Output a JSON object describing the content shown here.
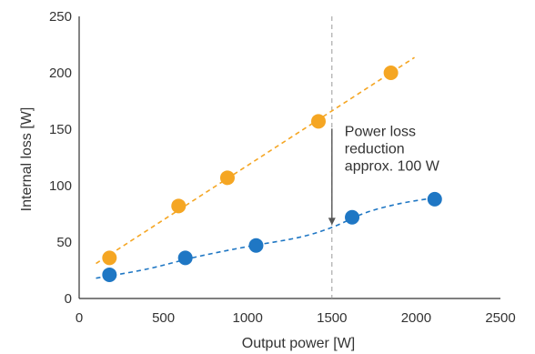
{
  "chart_data": {
    "type": "scatter",
    "xlabel": "Output power [W]",
    "ylabel": "Internal loss [W]",
    "xlim": [
      0,
      2500
    ],
    "ylim": [
      0,
      250
    ],
    "xticks": [
      0,
      500,
      1000,
      1500,
      2000,
      2500
    ],
    "yticks": [
      0,
      50,
      100,
      150,
      200,
      250
    ],
    "grid": false,
    "series": [
      {
        "color": "#F5A623",
        "points": [
          {
            "x": 180,
            "y": 36
          },
          {
            "x": 590,
            "y": 82
          },
          {
            "x": 880,
            "y": 107
          },
          {
            "x": 1420,
            "y": 157
          },
          {
            "x": 1850,
            "y": 200
          }
        ],
        "trend": "linear",
        "trend_range": [
          100,
          1990
        ]
      },
      {
        "color": "#1F77C4",
        "points": [
          {
            "x": 180,
            "y": 21
          },
          {
            "x": 630,
            "y": 36
          },
          {
            "x": 1050,
            "y": 47
          },
          {
            "x": 1620,
            "y": 72
          },
          {
            "x": 2110,
            "y": 88
          }
        ],
        "trend": "smooth",
        "trend_curve": [
          {
            "x": 100,
            "y": 18
          },
          {
            "x": 400,
            "y": 26
          },
          {
            "x": 700,
            "y": 37
          },
          {
            "x": 1000,
            "y": 46
          },
          {
            "x": 1300,
            "y": 54
          },
          {
            "x": 1500,
            "y": 63
          },
          {
            "x": 1700,
            "y": 76
          },
          {
            "x": 1900,
            "y": 84
          },
          {
            "x": 2100,
            "y": 89
          }
        ]
      }
    ],
    "reference_line": {
      "x": 1500,
      "style": "dashed",
      "color": "#999999"
    },
    "annotation": {
      "lines": [
        "Power loss",
        "reduction",
        "approx. 100 W"
      ],
      "arrow_from": {
        "x": 1500,
        "y": 157
      },
      "arrow_to": {
        "x": 1500,
        "y": 65
      }
    }
  }
}
